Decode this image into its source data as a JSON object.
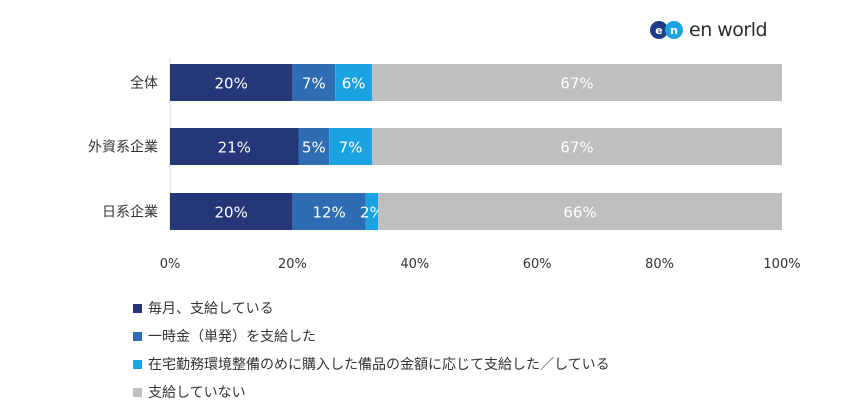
{
  "logo": {
    "mark_left": "e",
    "mark_right": "n",
    "text": "en world",
    "mark_colors": [
      "#1f3c88",
      "#1aa3e0"
    ]
  },
  "chart_data": {
    "type": "bar",
    "orientation": "horizontal",
    "stacked": true,
    "categories": [
      "全体",
      "外資系企業",
      "日系企業"
    ],
    "series": [
      {
        "name": "毎月、支給している",
        "color": "#253778",
        "values": [
          20,
          21,
          20
        ],
        "labels": [
          "20%",
          "21%",
          "20%"
        ]
      },
      {
        "name": "一時金（単発）を支給した",
        "color": "#2e6db4",
        "values": [
          7,
          5,
          12
        ],
        "labels": [
          "7%",
          "5%",
          "12%"
        ]
      },
      {
        "name": "在宅勤務環境整備のめに購入した備品の金額に応じて支給した／している",
        "color": "#1aa3e0",
        "values": [
          6,
          7,
          2
        ],
        "labels": [
          "6%",
          "7%",
          "2%"
        ]
      },
      {
        "name": "支給していない",
        "color": "#bfbfbf",
        "values": [
          67,
          67,
          66
        ],
        "labels": [
          "67%",
          "67%",
          "66%"
        ]
      }
    ],
    "xlim": [
      0,
      100
    ],
    "xticks": [
      "0%",
      "20%",
      "40%",
      "60%",
      "80%",
      "100%"
    ],
    "grid": false,
    "legend_position": "bottom-left"
  }
}
